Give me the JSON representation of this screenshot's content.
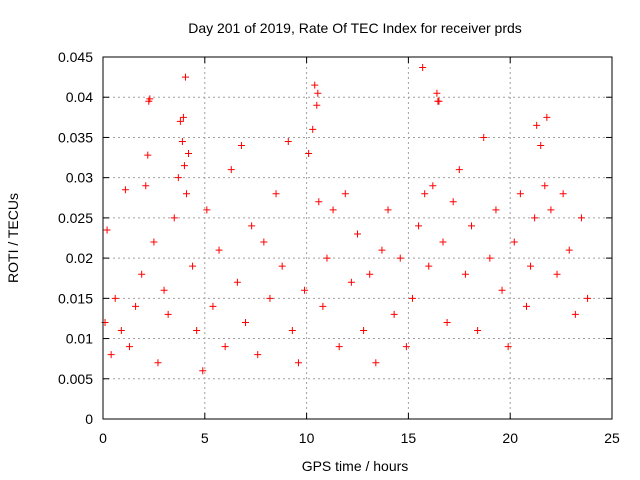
{
  "chart_data": {
    "type": "scatter",
    "title": "Day 201 of 2019, Rate Of TEC Index for receiver prds",
    "xlabel": "GPS time / hours",
    "ylabel": "ROTI / TECUs",
    "xlim": [
      0,
      25
    ],
    "ylim": [
      0,
      0.045
    ],
    "xticks": [
      0,
      5,
      10,
      15,
      20,
      25
    ],
    "xtick_labels": [
      "0",
      "5",
      "10",
      "15",
      "20",
      "25"
    ],
    "yticks": [
      0,
      0.005,
      0.01,
      0.015,
      0.02,
      0.025,
      0.03,
      0.035,
      0.04,
      0.045
    ],
    "ytick_labels": [
      "0",
      "0.005",
      "0.01",
      "0.015",
      "0.02",
      "0.025",
      "0.03",
      "0.035",
      "0.04",
      "0.045"
    ],
    "grid": true,
    "marker": "+",
    "color": "#ff0000",
    "series": [
      {
        "name": "prds",
        "x": [
          0.1,
          0.2,
          0.4,
          0.6,
          0.9,
          1.1,
          1.3,
          1.6,
          1.9,
          2.1,
          2.2,
          2.3,
          2.5,
          2.7,
          3.0,
          3.2,
          3.5,
          3.7,
          3.8,
          3.9,
          4.0,
          4.1,
          4.2,
          4.4,
          4.6,
          4.9,
          5.1,
          5.4,
          5.7,
          6.0,
          6.3,
          6.6,
          6.8,
          7.0,
          7.3,
          7.6,
          7.9,
          8.2,
          8.5,
          8.8,
          9.1,
          9.3,
          9.6,
          9.9,
          10.1,
          10.3,
          10.4,
          10.5,
          10.6,
          10.8,
          11.0,
          11.3,
          11.6,
          11.9,
          12.2,
          12.5,
          12.8,
          13.1,
          13.4,
          13.7,
          14.0,
          14.3,
          14.6,
          14.9,
          15.2,
          15.5,
          15.8,
          16.0,
          16.2,
          16.4,
          16.5,
          16.7,
          16.9,
          17.2,
          17.5,
          17.8,
          18.1,
          18.4,
          18.7,
          19.0,
          19.3,
          19.6,
          19.9,
          20.2,
          20.5,
          20.8,
          21.0,
          21.2,
          21.3,
          21.5,
          21.7,
          21.8,
          22.0,
          22.3,
          22.6,
          22.9,
          23.2,
          23.5,
          23.8,
          4.05,
          15.7,
          10.55,
          16.45,
          2.25,
          3.95
        ],
        "y": [
          0.012,
          0.0235,
          0.008,
          0.015,
          0.011,
          0.0285,
          0.009,
          0.014,
          0.018,
          0.029,
          0.0328,
          0.0398,
          0.022,
          0.007,
          0.016,
          0.013,
          0.025,
          0.03,
          0.037,
          0.0345,
          0.0315,
          0.028,
          0.033,
          0.019,
          0.011,
          0.006,
          0.026,
          0.014,
          0.021,
          0.009,
          0.031,
          0.017,
          0.034,
          0.012,
          0.024,
          0.008,
          0.022,
          0.015,
          0.028,
          0.019,
          0.0345,
          0.011,
          0.007,
          0.016,
          0.033,
          0.036,
          0.0415,
          0.039,
          0.027,
          0.014,
          0.02,
          0.026,
          0.009,
          0.028,
          0.017,
          0.023,
          0.011,
          0.018,
          0.007,
          0.021,
          0.026,
          0.013,
          0.02,
          0.009,
          0.015,
          0.024,
          0.028,
          0.019,
          0.029,
          0.0405,
          0.0395,
          0.022,
          0.012,
          0.027,
          0.031,
          0.018,
          0.024,
          0.011,
          0.035,
          0.02,
          0.026,
          0.016,
          0.009,
          0.022,
          0.028,
          0.014,
          0.019,
          0.025,
          0.0365,
          0.034,
          0.029,
          0.0375,
          0.026,
          0.018,
          0.028,
          0.021,
          0.013,
          0.025,
          0.015,
          0.0425,
          0.0437,
          0.0405,
          0.0395,
          0.0395,
          0.0375
        ]
      }
    ]
  }
}
